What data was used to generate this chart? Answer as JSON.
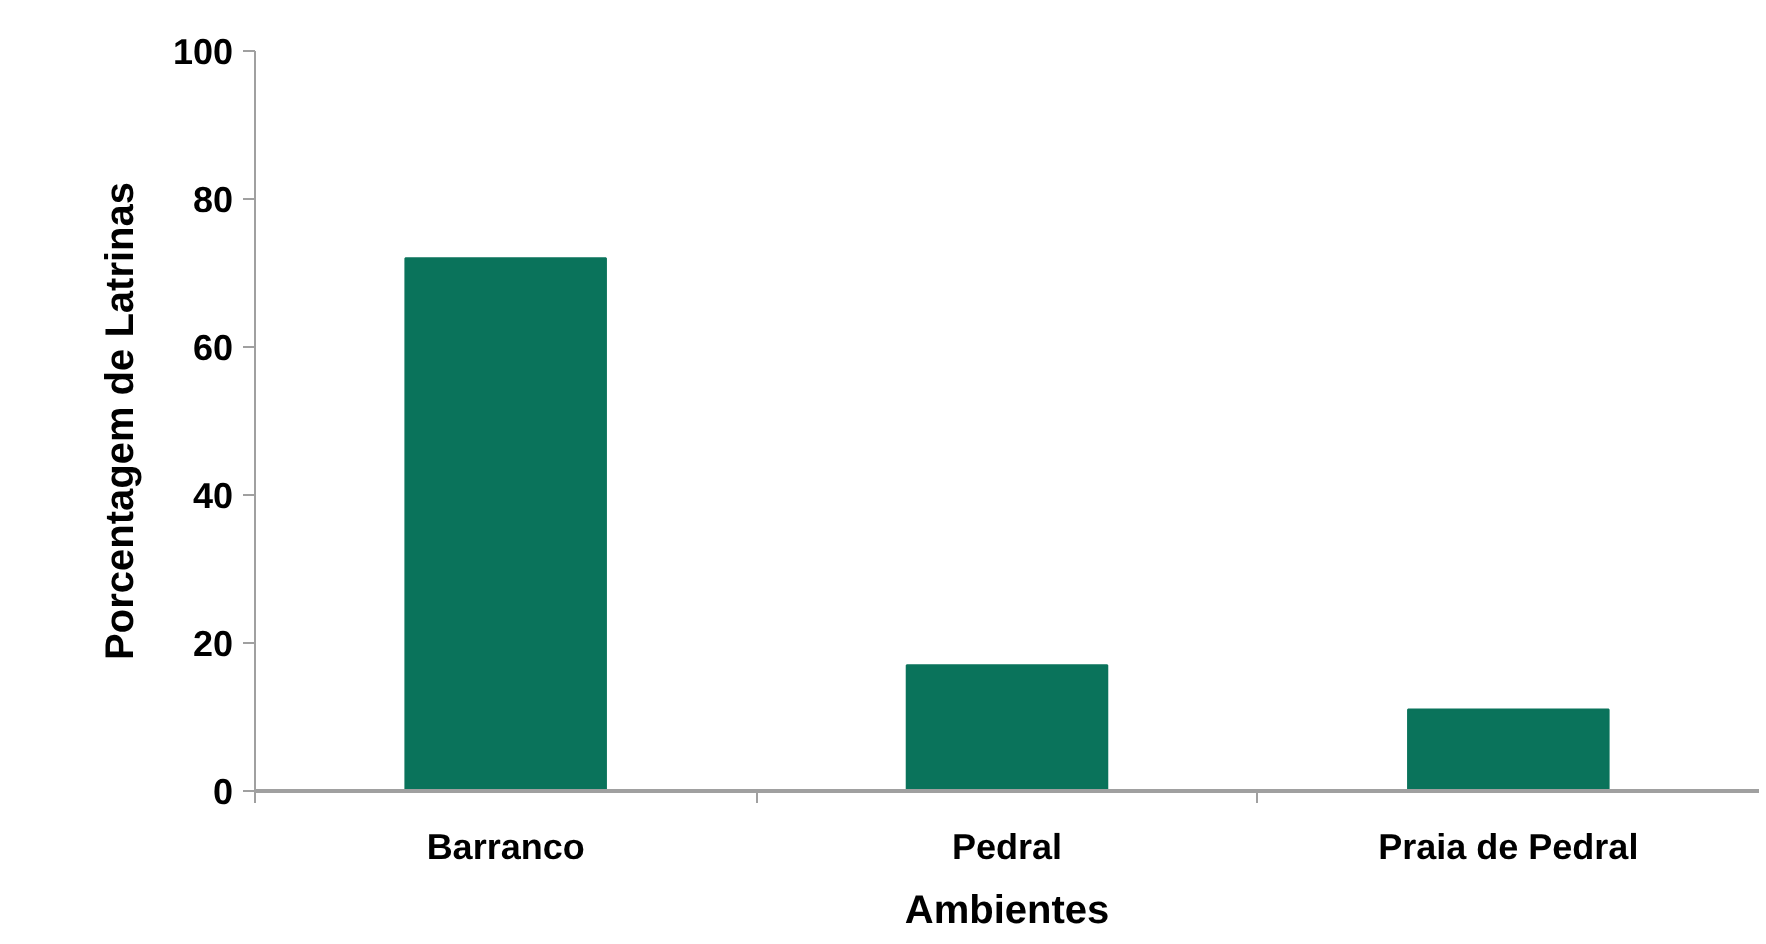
{
  "chart_data": {
    "type": "bar",
    "xlabel": "Ambientes",
    "ylabel": "Porcentagem de Latrinas",
    "categories": [
      "Barranco",
      "Pedral",
      "Praia de Pedral"
    ],
    "values": [
      72,
      17,
      11
    ],
    "color": "#0a735b",
    "ylim": [
      0,
      100
    ],
    "yticks": [
      0,
      20,
      40,
      60,
      80,
      100
    ]
  }
}
